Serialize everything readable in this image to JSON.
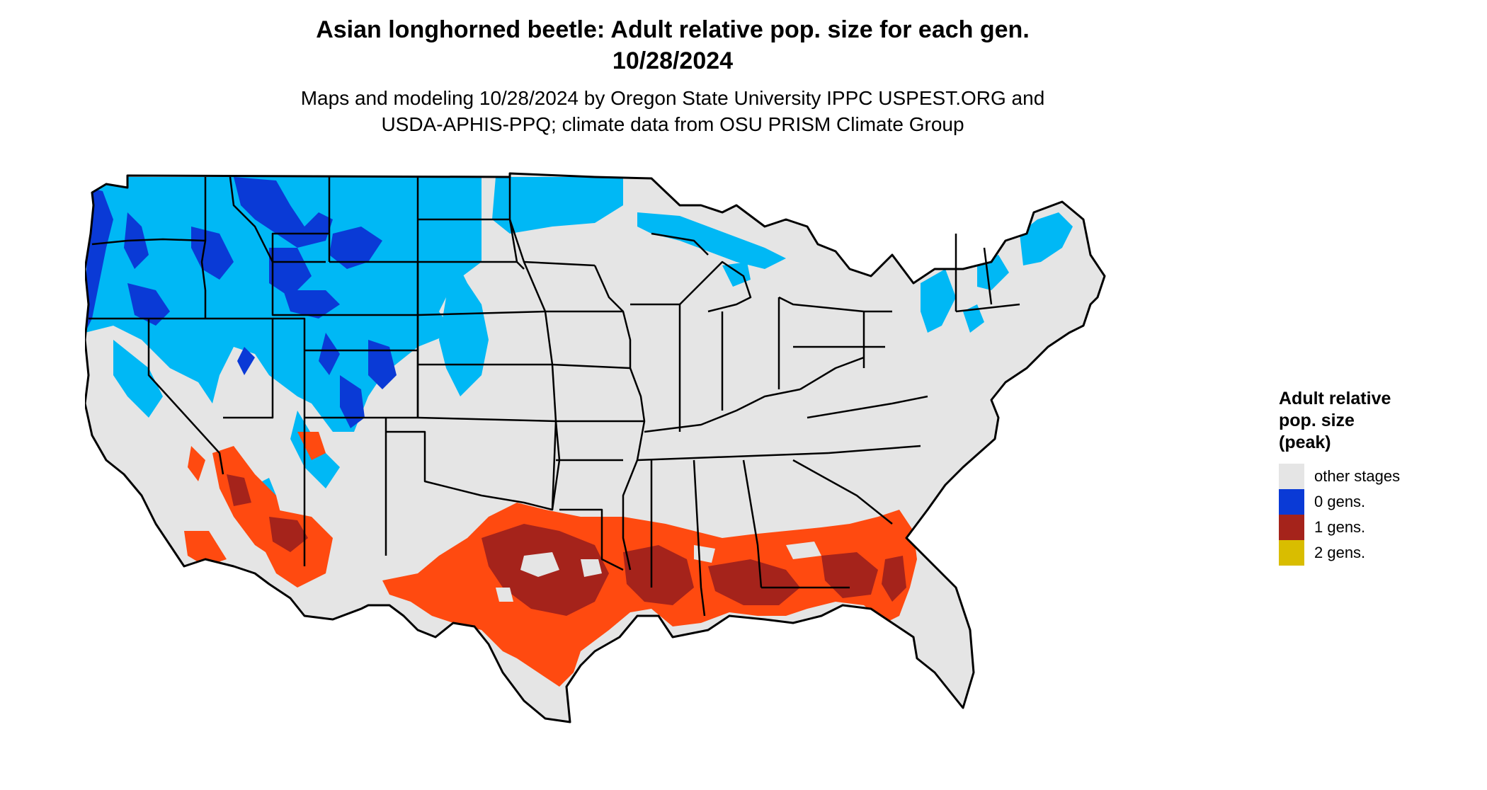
{
  "header": {
    "title_line1": "Asian longhorned beetle: Adult relative pop. size for each gen.",
    "title_line2": "10/28/2024",
    "subtitle_line1": "Maps and modeling 10/28/2024 by Oregon State University IPPC USPEST.ORG and",
    "subtitle_line2": "USDA-APHIS-PPQ; climate data from OSU PRISM Climate Group"
  },
  "legend": {
    "title_line1": "Adult relative",
    "title_line2": "pop. size",
    "title_line3": "(peak)",
    "items": [
      {
        "label": "other stages",
        "color": "#e5e5e5"
      },
      {
        "label": "0 gens.",
        "color": "#0a3ad6"
      },
      {
        "label": "1 gens.",
        "color": "#a5231b"
      },
      {
        "label": "2 gens.",
        "color": "#d9bd00"
      }
    ]
  },
  "map_colors": {
    "land": "#e5e5e5",
    "light_blue": "#00b8f5",
    "mid_blue": "#0a3ad6",
    "orange": "#ff4a10",
    "dark_red": "#a5231b",
    "border": "#000000"
  }
}
